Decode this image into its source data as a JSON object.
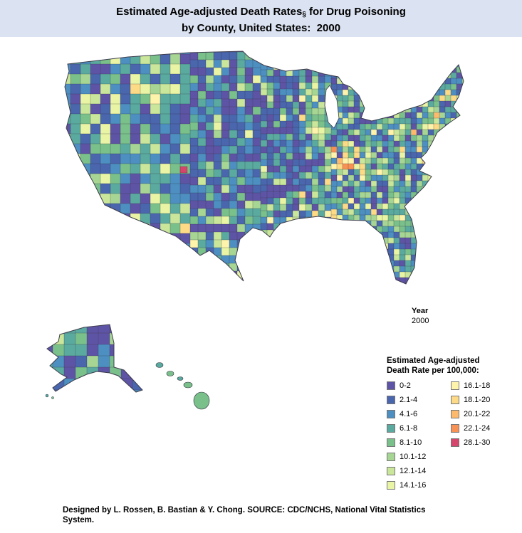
{
  "title": {
    "line1_prefix": "Estimated Age-adjusted Death Rates",
    "symbol": "§",
    "line1_suffix": " for Drug Poisoning",
    "line2": "by County, United States:  2000"
  },
  "year": {
    "label": "Year",
    "value": "2000"
  },
  "legend": {
    "title_line1": "Estimated Age-adjusted",
    "title_line2": "Death Rate per 100,000:",
    "left_column_count": 8,
    "items": [
      {
        "label": "0-2",
        "color": "#5e54a5"
      },
      {
        "label": "2.1-4",
        "color": "#4a66ad"
      },
      {
        "label": "4.1-6",
        "color": "#4d8fc0"
      },
      {
        "label": "6.1-8",
        "color": "#5aaa9f"
      },
      {
        "label": "8.1-10",
        "color": "#7ac08b"
      },
      {
        "label": "10.1-12",
        "color": "#a7d694"
      },
      {
        "label": "12.1-14",
        "color": "#c9e69b"
      },
      {
        "label": "14.1-16",
        "color": "#e9f5a4"
      },
      {
        "label": "16.1-18",
        "color": "#fef3ab"
      },
      {
        "label": "18.1-20",
        "color": "#fdda86"
      },
      {
        "label": "20.1-22",
        "color": "#fdba6d"
      },
      {
        "label": "22.1-24",
        "color": "#f89254"
      },
      {
        "label": "28.1-30",
        "color": "#d6456b"
      }
    ]
  },
  "footer": {
    "line1": "Designed by L. Rossen, B. Bastian & Y. Chong. SOURCE: CDC/NCHS, National Vital Statistics",
    "line2": "System."
  },
  "chart_data": {
    "type": "choropleth_map",
    "title": "Estimated Age-adjusted Death Rates for Drug Poisoning by County, United States: 2000",
    "geography": "United States counties (contiguous US with Alaska and Hawaii insets)",
    "year": 2000,
    "unit": "age-adjusted deaths per 100,000 population",
    "bins": [
      {
        "range": "0-2",
        "color": "#5e54a5"
      },
      {
        "range": "2.1-4",
        "color": "#4a66ad"
      },
      {
        "range": "4.1-6",
        "color": "#4d8fc0"
      },
      {
        "range": "6.1-8",
        "color": "#5aaa9f"
      },
      {
        "range": "8.1-10",
        "color": "#7ac08b"
      },
      {
        "range": "10.1-12",
        "color": "#a7d694"
      },
      {
        "range": "12.1-14",
        "color": "#c9e69b"
      },
      {
        "range": "14.1-16",
        "color": "#e9f5a4"
      },
      {
        "range": "16.1-18",
        "color": "#fef3ab"
      },
      {
        "range": "18.1-20",
        "color": "#fdda86"
      },
      {
        "range": "20.1-22",
        "color": "#fdba6d"
      },
      {
        "range": "22.1-24",
        "color": "#f89254"
      },
      {
        "range": "28.1-30",
        "color": "#d6456b"
      }
    ],
    "legend_position": "bottom-right",
    "visual_summary": [
      "Most counties in the Great Plains and upper Midwest are shaded dark purple/blue (rates 0-6)",
      "Teal and green counties (6-12) dominate the coasts, South and Northeast",
      "Scattered pale green to yellow counties (12-18) across the West, Southeast and Appalachia",
      "A cluster of orange counties (18-24) in central Appalachia (eastern Kentucky / West Virginia area)",
      "A single red county (28.1-30) near southern Colorado / Four Corners",
      "An orange county on the northern California coast"
    ]
  }
}
